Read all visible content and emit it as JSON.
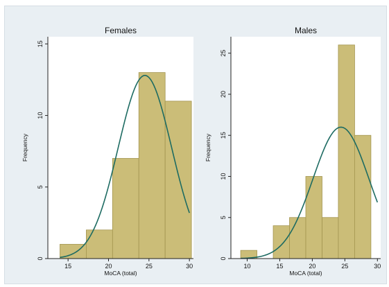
{
  "chart_data": [
    {
      "type": "bar",
      "title": "Females",
      "xlabel": "MoCA (total)",
      "ylabel": "Frequency",
      "xlim": [
        12.5,
        30.5
      ],
      "ylim": [
        0,
        15.5
      ],
      "xticks": [
        15,
        20,
        25,
        30
      ],
      "yticks": [
        0,
        5,
        10,
        15
      ],
      "bins": [
        {
          "from": 14.0,
          "to": 17.25,
          "value": 1
        },
        {
          "from": 17.25,
          "to": 20.5,
          "value": 2
        },
        {
          "from": 20.5,
          "to": 23.75,
          "value": 7
        },
        {
          "from": 23.75,
          "to": 27.0,
          "value": 13
        },
        {
          "from": 27.0,
          "to": 30.25,
          "value": 11
        }
      ],
      "normal_curve": {
        "mean": 24.5,
        "sd": 3.3,
        "peak": 12.8,
        "from": 14.0,
        "to": 30.0
      }
    },
    {
      "type": "bar",
      "title": "Males",
      "xlabel": "MoCA (total)",
      "ylabel": "Frequency",
      "xlim": [
        7.5,
        30.5
      ],
      "ylim": [
        0,
        27
      ],
      "xticks": [
        10,
        15,
        20,
        25,
        30
      ],
      "yticks": [
        0,
        5,
        10,
        15,
        20,
        25
      ],
      "bins": [
        {
          "from": 9.0,
          "to": 11.5,
          "value": 1
        },
        {
          "from": 11.5,
          "to": 14.0,
          "value": 0
        },
        {
          "from": 14.0,
          "to": 16.5,
          "value": 4
        },
        {
          "from": 16.5,
          "to": 19.0,
          "value": 5
        },
        {
          "from": 19.0,
          "to": 21.5,
          "value": 10
        },
        {
          "from": 21.5,
          "to": 24.0,
          "value": 5
        },
        {
          "from": 24.0,
          "to": 26.5,
          "value": 26
        },
        {
          "from": 26.5,
          "to": 29.0,
          "value": 15
        }
      ],
      "normal_curve": {
        "mean": 24.4,
        "sd": 4.3,
        "peak": 16.0,
        "from": 9.0,
        "to": 30.0
      }
    }
  ],
  "colors": {
    "bar_fill": "#cbbd78",
    "bar_stroke": "#a39550",
    "curve": "#1d6b62",
    "background": "#e9eff3"
  }
}
